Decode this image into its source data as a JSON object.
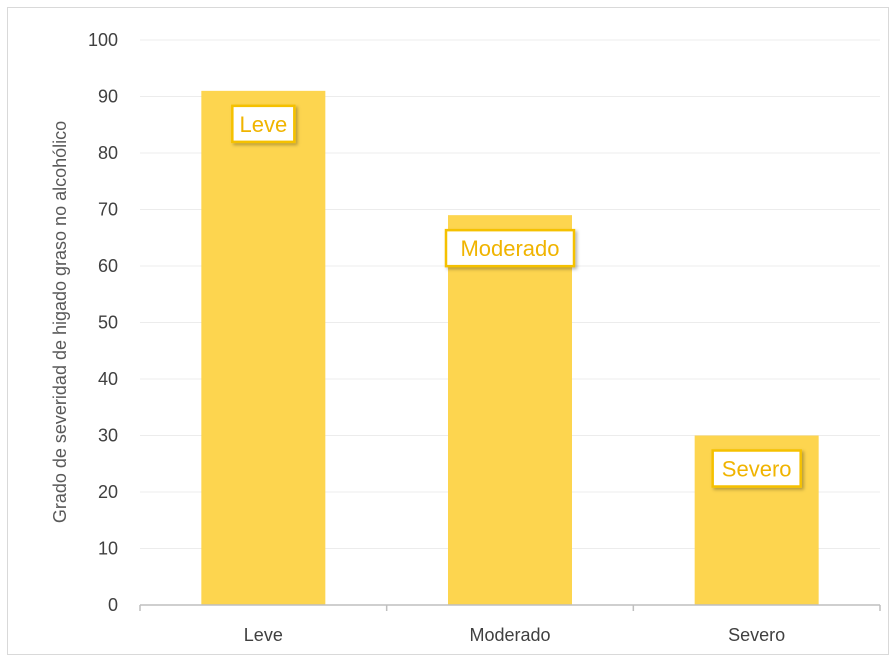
{
  "chart_data": {
    "type": "bar",
    "title": "",
    "xlabel": "",
    "ylabel": "Grado de severidad de higado graso no alcohólico",
    "categories": [
      "Leve",
      "Moderado",
      "Severo"
    ],
    "values": [
      91,
      69,
      30
    ],
    "data_labels": [
      "Leve",
      "Moderado",
      "Severo"
    ],
    "ylim": [
      0,
      100
    ],
    "yticks": [
      0,
      10,
      20,
      30,
      40,
      50,
      60,
      70,
      80,
      90,
      100
    ],
    "grid": true,
    "legend": "none",
    "colors": {
      "bar": "#FDD54F",
      "label_border": "#F5C100",
      "label_text": "#F0B400",
      "grid": "#ececec",
      "axis": "#bfbfbf"
    }
  }
}
